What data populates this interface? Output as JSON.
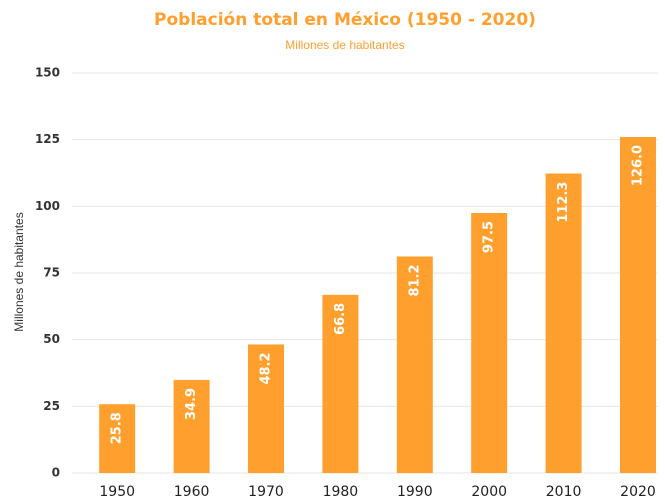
{
  "chart_data": {
    "type": "bar",
    "title": "Población total en México (1950 - 2020)",
    "subtitle": "Millones de habitantes",
    "y_label": "Millones de habitantes",
    "categories": [
      "1950",
      "1960",
      "1970",
      "1980",
      "1990",
      "2000",
      "2010",
      "2020"
    ],
    "values": [
      25.8,
      34.9,
      48.2,
      66.8,
      81.2,
      97.5,
      112.3,
      126.0
    ],
    "value_labels": [
      "25.8",
      "34.9",
      "48.2",
      "66.8",
      "81.2",
      "97.5",
      "112.3",
      "126.0"
    ],
    "color": "#ff9f2e",
    "ylim": [
      0,
      150
    ],
    "yticks": [
      0,
      25,
      50,
      75,
      100,
      125,
      150
    ],
    "grid": true
  }
}
